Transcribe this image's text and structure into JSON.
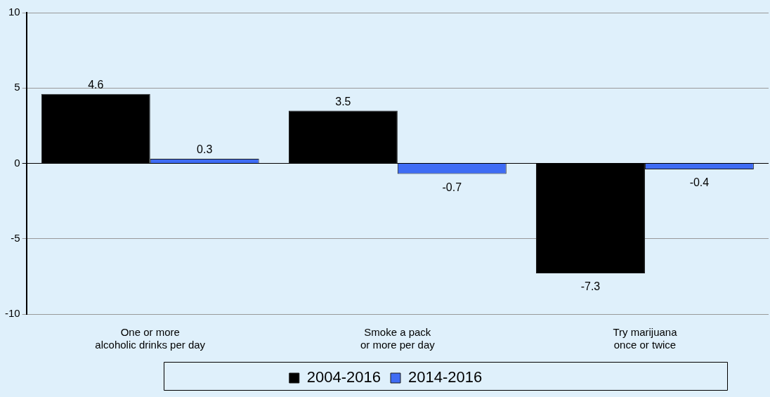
{
  "chart_data": {
    "type": "bar",
    "categories": [
      "One or more\nalcoholic drinks per day",
      "Smoke a pack\nor more per day",
      "Try marijuana\nonce or twice"
    ],
    "series": [
      {
        "name": "2004-2016",
        "color": "#000000",
        "values": [
          4.6,
          3.5,
          -7.3
        ]
      },
      {
        "name": "2014-2016",
        "color": "#3f6cf4",
        "values": [
          0.3,
          -0.7,
          -0.4
        ]
      }
    ],
    "ylim": [
      -10,
      10
    ],
    "yticks": [
      -10,
      -5,
      0,
      5,
      10
    ],
    "grid": "y",
    "legend": "bottom",
    "data_labels": true
  }
}
